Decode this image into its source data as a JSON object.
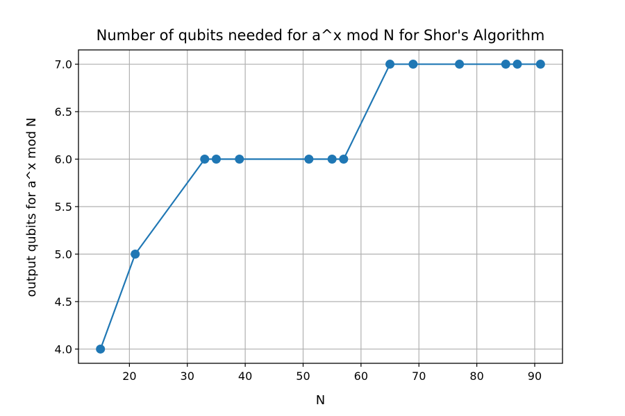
{
  "chart_data": {
    "type": "line",
    "title": "Number of qubits needed for a^x mod N for Shor's Algorithm",
    "xlabel": "N",
    "ylabel": "output qubits for a^x mod N",
    "xlim": [
      11.2,
      94.8
    ],
    "ylim": [
      3.85,
      7.15
    ],
    "x_ticks": [
      20,
      30,
      40,
      50,
      60,
      70,
      80,
      90
    ],
    "x_tick_labels": [
      "20",
      "30",
      "40",
      "50",
      "60",
      "70",
      "80",
      "90"
    ],
    "y_ticks": [
      4.0,
      4.5,
      5.0,
      5.5,
      6.0,
      6.5,
      7.0
    ],
    "y_tick_labels": [
      "4.0",
      "4.5",
      "5.0",
      "5.5",
      "6.0",
      "6.5",
      "7.0"
    ],
    "grid": true,
    "marker": "circle",
    "color": "#1f77b4",
    "x": [
      15,
      21,
      33,
      35,
      39,
      51,
      55,
      57,
      65,
      69,
      77,
      85,
      87,
      91
    ],
    "y": [
      4,
      5,
      6,
      6,
      6,
      6,
      6,
      6,
      7,
      7,
      7,
      7,
      7,
      7
    ]
  }
}
